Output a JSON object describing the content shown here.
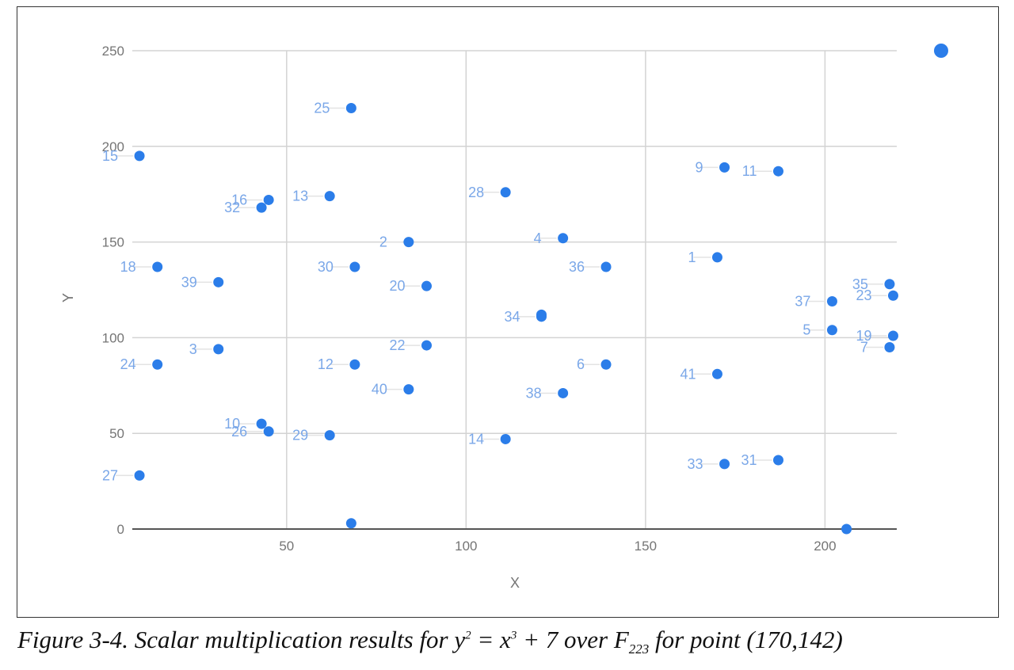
{
  "chart_data": {
    "type": "scatter",
    "xlabel": "X",
    "ylabel": "Y",
    "xlim": [
      7,
      220
    ],
    "ylim": [
      0,
      250
    ],
    "xticks": [
      50,
      100,
      150,
      200
    ],
    "yticks": [
      0,
      50,
      100,
      150,
      200,
      250
    ],
    "grid": true,
    "color": "#2b7de9",
    "label_color": "#7aa7e8",
    "points": [
      {
        "label": "1",
        "x": 170,
        "y": 142
      },
      {
        "label": "2",
        "x": 84,
        "y": 150
      },
      {
        "label": "3",
        "x": 31,
        "y": 94
      },
      {
        "label": "4",
        "x": 127,
        "y": 152
      },
      {
        "label": "5",
        "x": 202,
        "y": 104
      },
      {
        "label": "6",
        "x": 139,
        "y": 86
      },
      {
        "label": "7",
        "x": 218,
        "y": 95
      },
      {
        "label": "9",
        "x": 172,
        "y": 189
      },
      {
        "label": "10",
        "x": 43,
        "y": 55
      },
      {
        "label": "11",
        "x": 187,
        "y": 187
      },
      {
        "label": "12",
        "x": 69,
        "y": 86
      },
      {
        "label": "13",
        "x": 62,
        "y": 174
      },
      {
        "label": "14",
        "x": 111,
        "y": 47
      },
      {
        "label": "15",
        "x": 9,
        "y": 195
      },
      {
        "label": "16",
        "x": 45,
        "y": 172
      },
      {
        "label": "18",
        "x": 14,
        "y": 137
      },
      {
        "label": "19",
        "x": 219,
        "y": 101
      },
      {
        "label": "20",
        "x": 89,
        "y": 127
      },
      {
        "label": "22",
        "x": 89,
        "y": 96
      },
      {
        "label": "23",
        "x": 219,
        "y": 122
      },
      {
        "label": "24",
        "x": 14,
        "y": 86
      },
      {
        "label": "25",
        "x": 68,
        "y": 220
      },
      {
        "label": "26",
        "x": 45,
        "y": 51
      },
      {
        "label": "27",
        "x": 9,
        "y": 28
      },
      {
        "label": "28",
        "x": 111,
        "y": 176
      },
      {
        "label": "29",
        "x": 62,
        "y": 49
      },
      {
        "label": "30",
        "x": 69,
        "y": 137
      },
      {
        "label": "31",
        "x": 187,
        "y": 36
      },
      {
        "label": "32",
        "x": 43,
        "y": 168
      },
      {
        "label": "33",
        "x": 172,
        "y": 34
      },
      {
        "label": "34",
        "x": 121,
        "y": 111
      },
      {
        "label": "35",
        "x": 218,
        "y": 128
      },
      {
        "label": "36",
        "x": 139,
        "y": 137
      },
      {
        "label": "37",
        "x": 202,
        "y": 119
      },
      {
        "label": "38",
        "x": 127,
        "y": 71
      },
      {
        "label": "39",
        "x": 31,
        "y": 129
      },
      {
        "label": "40",
        "x": 84,
        "y": 73
      },
      {
        "label": "41",
        "x": 170,
        "y": 81
      },
      {
        "label": "",
        "x": 68,
        "y": 3
      },
      {
        "label": "",
        "x": 121,
        "y": 112
      },
      {
        "label": "",
        "x": 206,
        "y": 0
      }
    ]
  },
  "legend_marker": {
    "color": "#2b7de9"
  },
  "caption": {
    "prefix": "Figure 3-4. Scalar multiplication results for y",
    "exp1": "2",
    "mid": " = x",
    "exp2": "3",
    "mid2": " + 7 over F",
    "sub": "223",
    "suffix": " for point (170,142)"
  }
}
